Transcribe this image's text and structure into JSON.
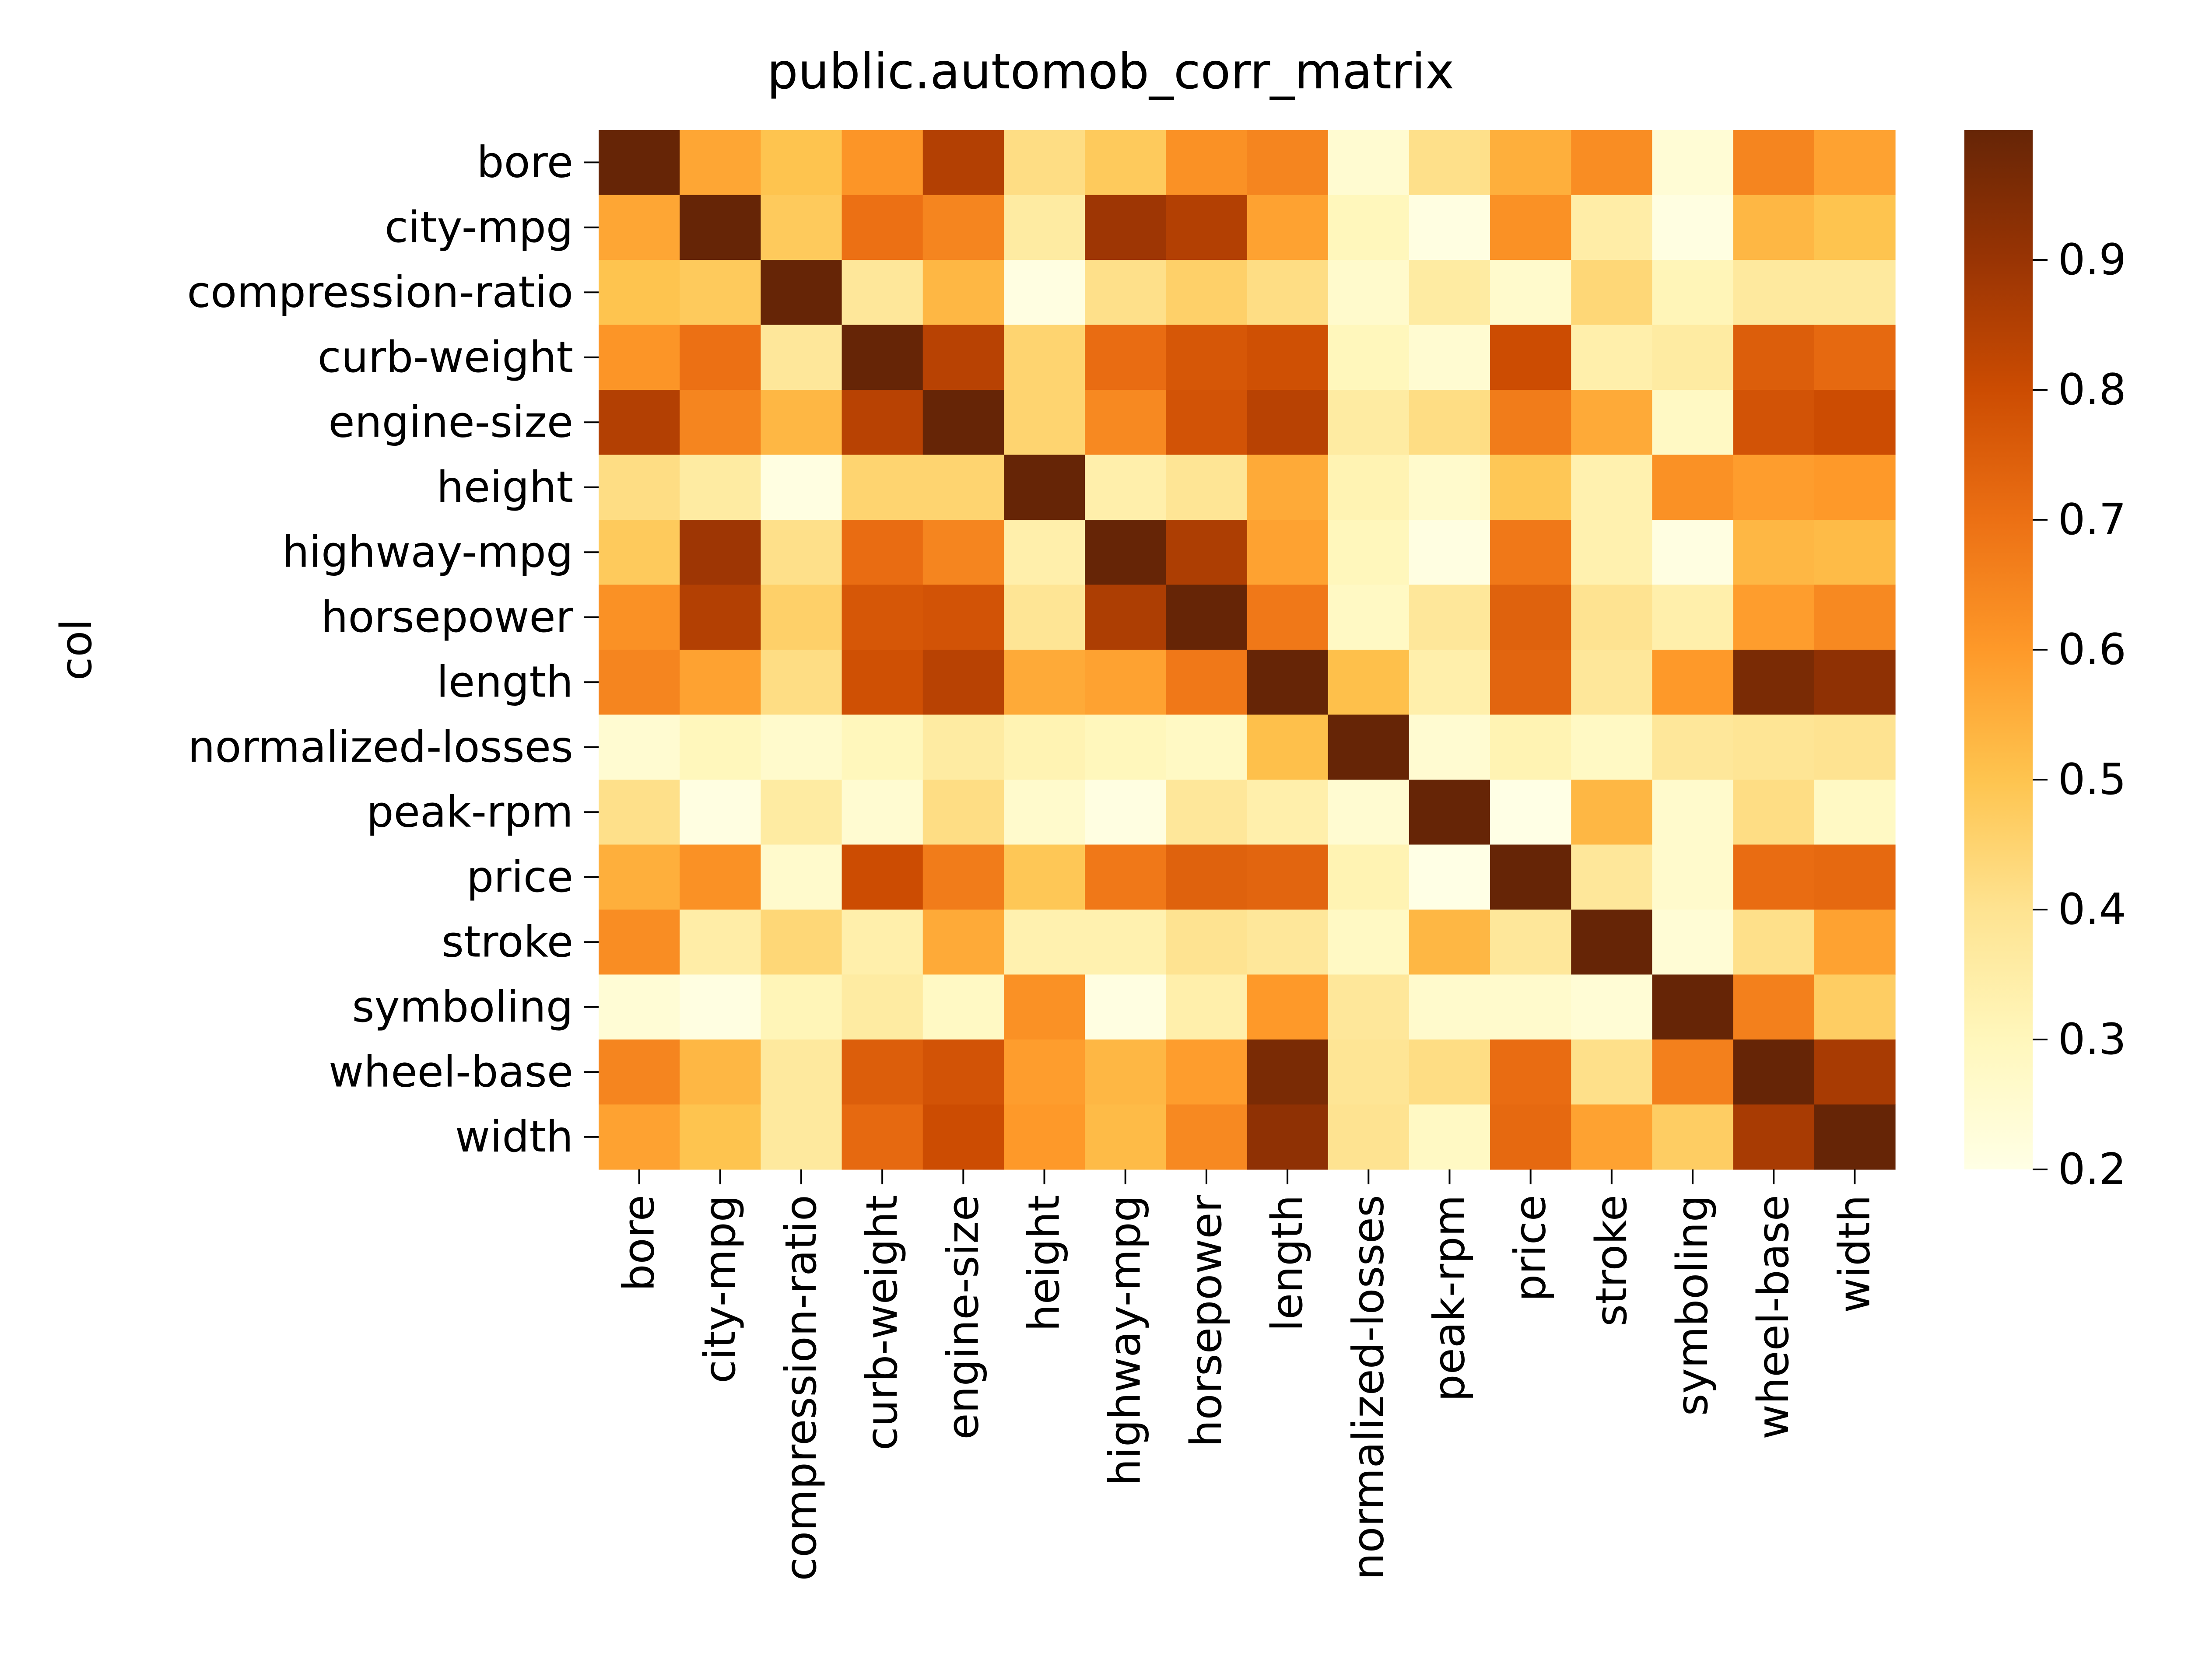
{
  "chart_data": {
    "type": "heatmap",
    "title": "public.automob_corr_matrix",
    "xlabel": "",
    "ylabel": "col",
    "rows": [
      "bore",
      "city-mpg",
      "compression-ratio",
      "curb-weight",
      "engine-size",
      "height",
      "highway-mpg",
      "horsepower",
      "length",
      "normalized-losses",
      "peak-rpm",
      "price",
      "stroke",
      "symboling",
      "wheel-base",
      "width"
    ],
    "columns": [
      "bore",
      "city-mpg",
      "compression-ratio",
      "curb-weight",
      "engine-size",
      "height",
      "highway-mpg",
      "horsepower",
      "length",
      "normalized-losses",
      "peak-rpm",
      "price",
      "stroke",
      "symboling",
      "wheel-base",
      "width"
    ],
    "values": [
      [
        1.0,
        0.57,
        0.5,
        0.61,
        0.85,
        0.42,
        0.48,
        0.62,
        0.65,
        0.25,
        0.41,
        0.55,
        0.63,
        0.24,
        0.65,
        0.58
      ],
      [
        0.57,
        1.0,
        0.48,
        0.7,
        0.65,
        0.36,
        0.89,
        0.85,
        0.58,
        0.3,
        0.21,
        0.62,
        0.35,
        0.21,
        0.53,
        0.5
      ],
      [
        0.5,
        0.48,
        1.0,
        0.38,
        0.53,
        0.21,
        0.41,
        0.46,
        0.42,
        0.26,
        0.36,
        0.26,
        0.44,
        0.31,
        0.37,
        0.37
      ],
      [
        0.61,
        0.7,
        0.38,
        1.0,
        0.84,
        0.45,
        0.71,
        0.77,
        0.79,
        0.3,
        0.25,
        0.8,
        0.34,
        0.36,
        0.75,
        0.72
      ],
      [
        0.85,
        0.65,
        0.53,
        0.84,
        1.0,
        0.45,
        0.64,
        0.78,
        0.84,
        0.36,
        0.42,
        0.67,
        0.56,
        0.28,
        0.78,
        0.8
      ],
      [
        0.42,
        0.36,
        0.21,
        0.45,
        0.45,
        1.0,
        0.34,
        0.39,
        0.56,
        0.32,
        0.26,
        0.49,
        0.33,
        0.62,
        0.59,
        0.6
      ],
      [
        0.48,
        0.89,
        0.41,
        0.71,
        0.65,
        0.34,
        1.0,
        0.86,
        0.58,
        0.3,
        0.21,
        0.68,
        0.33,
        0.21,
        0.53,
        0.52
      ],
      [
        0.62,
        0.85,
        0.46,
        0.77,
        0.78,
        0.39,
        0.86,
        1.0,
        0.68,
        0.28,
        0.38,
        0.74,
        0.4,
        0.34,
        0.59,
        0.64
      ],
      [
        0.65,
        0.58,
        0.42,
        0.79,
        0.84,
        0.56,
        0.58,
        0.68,
        1.0,
        0.51,
        0.34,
        0.73,
        0.38,
        0.6,
        0.96,
        0.92
      ],
      [
        0.25,
        0.3,
        0.26,
        0.3,
        0.36,
        0.32,
        0.3,
        0.28,
        0.51,
        1.0,
        0.25,
        0.32,
        0.28,
        0.38,
        0.39,
        0.4
      ],
      [
        0.41,
        0.21,
        0.36,
        0.25,
        0.42,
        0.26,
        0.21,
        0.38,
        0.34,
        0.25,
        1.0,
        0.2,
        0.53,
        0.26,
        0.42,
        0.28
      ],
      [
        0.55,
        0.62,
        0.26,
        0.8,
        0.67,
        0.49,
        0.68,
        0.74,
        0.73,
        0.32,
        0.2,
        1.0,
        0.38,
        0.26,
        0.71,
        0.72
      ],
      [
        0.63,
        0.35,
        0.44,
        0.34,
        0.56,
        0.33,
        0.33,
        0.4,
        0.38,
        0.28,
        0.53,
        0.38,
        1.0,
        0.24,
        0.41,
        0.58
      ],
      [
        0.24,
        0.21,
        0.31,
        0.36,
        0.28,
        0.62,
        0.21,
        0.34,
        0.6,
        0.38,
        0.26,
        0.26,
        0.24,
        1.0,
        0.66,
        0.47
      ],
      [
        0.65,
        0.53,
        0.37,
        0.75,
        0.78,
        0.59,
        0.53,
        0.59,
        0.96,
        0.39,
        0.42,
        0.71,
        0.41,
        0.66,
        1.0,
        0.87
      ],
      [
        0.58,
        0.5,
        0.37,
        0.72,
        0.8,
        0.6,
        0.52,
        0.64,
        0.92,
        0.4,
        0.28,
        0.72,
        0.58,
        0.47,
        0.87,
        1.0
      ]
    ],
    "colormap": "YlOrBr",
    "colorbar": {
      "vmin": 0.2,
      "vmax": 1.0,
      "ticks": [
        0.2,
        0.3,
        0.4,
        0.5,
        0.6,
        0.7,
        0.8,
        0.9
      ],
      "tick_labels": [
        "0.2",
        "0.3",
        "0.4",
        "0.5",
        "0.6",
        "0.7",
        "0.8",
        "0.9"
      ]
    },
    "colorbar_stops": [
      "#ffffe5",
      "#fff7bc",
      "#fee391",
      "#fec44f",
      "#fe9929",
      "#ec7014",
      "#cc4c02",
      "#993404",
      "#662506"
    ]
  }
}
